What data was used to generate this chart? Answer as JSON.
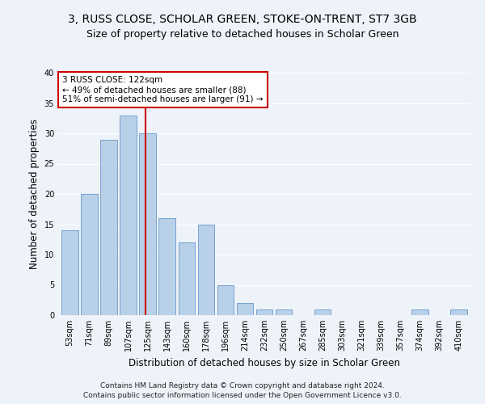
{
  "title": "3, RUSS CLOSE, SCHOLAR GREEN, STOKE-ON-TRENT, ST7 3GB",
  "subtitle": "Size of property relative to detached houses in Scholar Green",
  "xlabel": "Distribution of detached houses by size in Scholar Green",
  "ylabel": "Number of detached properties",
  "bar_color": "#b8d0e8",
  "bar_edge_color": "#6699cc",
  "categories": [
    "53sqm",
    "71sqm",
    "89sqm",
    "107sqm",
    "125sqm",
    "143sqm",
    "160sqm",
    "178sqm",
    "196sqm",
    "214sqm",
    "232sqm",
    "250sqm",
    "267sqm",
    "285sqm",
    "303sqm",
    "321sqm",
    "339sqm",
    "357sqm",
    "374sqm",
    "392sqm",
    "410sqm"
  ],
  "values": [
    14,
    20,
    29,
    33,
    30,
    16,
    12,
    15,
    5,
    2,
    1,
    1,
    0,
    1,
    0,
    0,
    0,
    0,
    1,
    0,
    1
  ],
  "vline_x_index": 3.87,
  "vline_color": "#cc0000",
  "annotation_line1": "3 RUSS CLOSE: 122sqm",
  "annotation_line2": "← 49% of detached houses are smaller (88)",
  "annotation_line3": "51% of semi-detached houses are larger (91) →",
  "annotation_box_color": "#ffffff",
  "annotation_box_edge": "#cc0000",
  "footer1": "Contains HM Land Registry data © Crown copyright and database right 2024.",
  "footer2": "Contains public sector information licensed under the Open Government Licence v3.0.",
  "ylim": [
    0,
    40
  ],
  "yticks": [
    0,
    5,
    10,
    15,
    20,
    25,
    30,
    35,
    40
  ],
  "background_color": "#eef2f9",
  "grid_color": "#ffffff",
  "title_fontsize": 10,
  "subtitle_fontsize": 9,
  "axis_label_fontsize": 8.5,
  "tick_fontsize": 7,
  "annotation_fontsize": 7.5,
  "footer_fontsize": 6.5
}
